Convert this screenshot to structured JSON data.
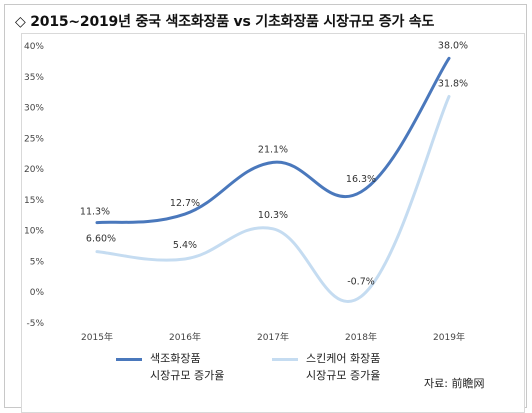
{
  "title": "◇ 2015~2019년 중국 색조화장품 vs 기초화장품 시장규모 증가 속도",
  "source": "자료: 前瞻网",
  "colors": {
    "series1": "#4a78bc",
    "series2": "#c5dcf1"
  },
  "chart_data": {
    "type": "line",
    "title": "",
    "xlabel": "",
    "ylabel": "",
    "categories": [
      "2015年",
      "2016年",
      "2017年",
      "2018年",
      "2019年"
    ],
    "ylim": [
      -5,
      40
    ],
    "yticks": [
      "-5%",
      "0%",
      "5%",
      "10%",
      "15%",
      "20%",
      "25%",
      "30%",
      "35%",
      "40%"
    ],
    "grid": false,
    "smooth": true,
    "legend_position": "bottom-left",
    "series": [
      {
        "name_lines": [
          "색조화장품",
          "시장규모 증가율"
        ],
        "values": [
          11.3,
          12.7,
          21.1,
          16.3,
          38.0
        ],
        "labels": [
          "11.3%",
          "12.7%",
          "21.1%",
          "16.3%",
          "38.0%"
        ]
      },
      {
        "name_lines": [
          "스킨케어 화장품",
          "시장규모 증가율"
        ],
        "values": [
          6.6,
          5.4,
          10.3,
          -0.7,
          31.8
        ],
        "labels": [
          "6.60%",
          "5.4%",
          "10.3%",
          "-0.7%",
          "31.8%"
        ]
      }
    ]
  }
}
